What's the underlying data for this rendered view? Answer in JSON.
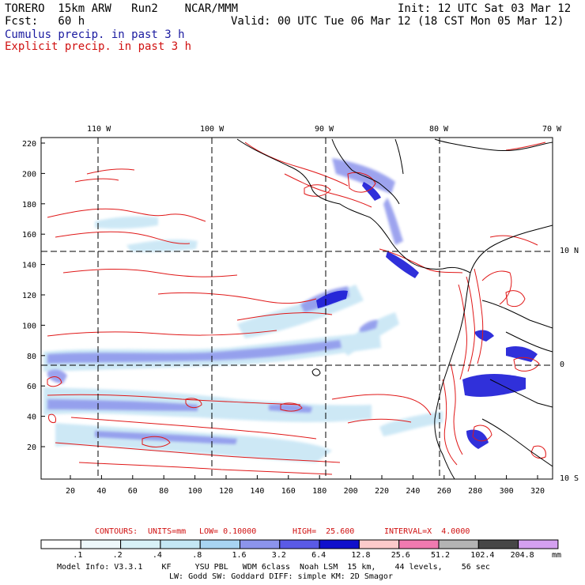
{
  "header": {
    "model": "TORERO  15km ARW   Run2    NCAR/MMM",
    "init": "Init: 12 UTC Sat 03 Mar 12",
    "forecast": "Fcst:   60 h",
    "valid": "Valid: 00 UTC Tue 06 Mar 12 (18 CST Mon 05 Mar 12)",
    "field1": "Cumulus precip. in past 3 h",
    "field2": "Explicit precip. in past 3 h"
  },
  "map": {
    "lon_labels": [
      "110 W",
      "100 W",
      "90 W",
      "80 W",
      "70 W"
    ],
    "lat_labels": [
      "10 N",
      "0",
      "10 S"
    ],
    "y_ticks": [
      "220",
      "200",
      "180",
      "160",
      "140",
      "120",
      "100",
      "80",
      "60",
      "40",
      "20"
    ],
    "x_ticks": [
      "20",
      "40",
      "60",
      "80",
      "100",
      "120",
      "140",
      "160",
      "180",
      "200",
      "220",
      "240",
      "260",
      "280",
      "300",
      "320"
    ],
    "colors": {
      "explicit": "#e01818",
      "cumulus_light": "#c8e6f5",
      "cumulus_mid": "#8c94ec",
      "cumulus_dark": "#1a1ad6",
      "coast": "#000000"
    }
  },
  "contours": {
    "label": "CONTOURS:",
    "units": "UNITS=mm",
    "low": "LOW= 0.10000",
    "high": "HIGH=  25.600",
    "interval": "INTERVAL=X  4.0000"
  },
  "legend": {
    "labels": [
      ".1",
      ".2",
      ".4",
      ".8",
      "1.6",
      "3.2",
      "6.4",
      "12.8",
      "25.6",
      "51.2",
      "102.4",
      "204.8"
    ],
    "unit": "mm",
    "colors": [
      "#ffffff",
      "#eef8fb",
      "#d8f1f7",
      "#c4e7f4",
      "#a8d4f2",
      "#8c94ec",
      "#5a5ae6",
      "#1010cc",
      "#fccaca",
      "#f07ab0",
      "#b4b4b4",
      "#464646",
      "#d4a0f0"
    ]
  },
  "footer": {
    "line1": "Model Info: V3.3.1    KF     YSU PBL   WDM 6class  Noah LSM  15 km,    44 levels,    56 sec",
    "line2": "LW: Godd SW: Goddard DIFF: simple KM: 2D Smagor"
  }
}
